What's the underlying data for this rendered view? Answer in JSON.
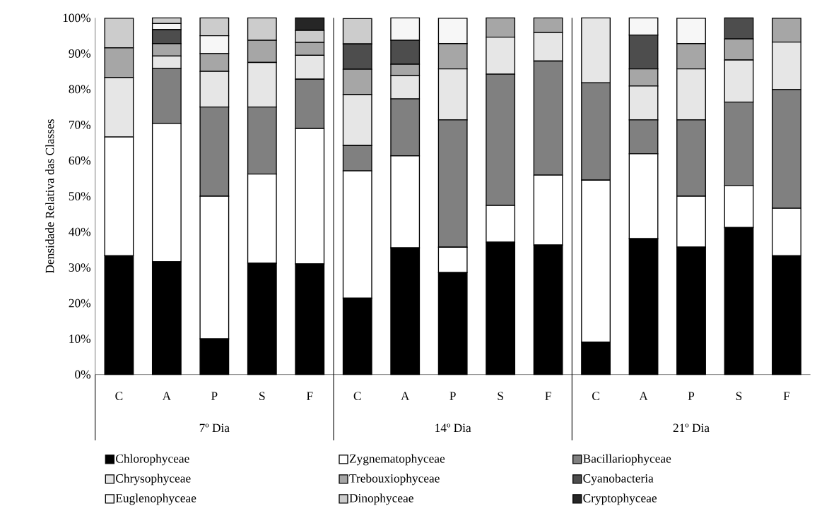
{
  "chart_data": {
    "type": "bar",
    "stacked": true,
    "ylabel": "Densidade Relativa das Classes",
    "categories": [
      "C",
      "A",
      "P",
      "S",
      "F",
      "C",
      "A",
      "P",
      "S",
      "F",
      "C",
      "A",
      "P",
      "S",
      "F"
    ],
    "annotations": [
      "7º Dia",
      "14º Dia",
      "21º Dia"
    ],
    "ylim": [
      0,
      100
    ],
    "yticks": [
      {
        "value": 0,
        "label": "0%"
      },
      {
        "value": 10,
        "label": "10%"
      },
      {
        "value": 20,
        "label": "20%"
      },
      {
        "value": 30,
        "label": "30%"
      },
      {
        "value": 40,
        "label": "40%"
      },
      {
        "value": 50,
        "label": "50%"
      },
      {
        "value": 60,
        "label": "60%"
      },
      {
        "value": 70,
        "label": "70%"
      },
      {
        "value": 80,
        "label": "80%"
      },
      {
        "value": 90,
        "label": "90%"
      },
      {
        "value": 100,
        "label": "100%"
      }
    ],
    "legend": "bottom",
    "grid": false,
    "series": [
      {
        "name": "Chlorophyceae",
        "color": "#000000",
        "values": [
          33.3,
          31.6,
          10,
          31.2,
          31,
          21.4,
          35.5,
          28.6,
          37.1,
          36.3,
          9.1,
          38.1,
          35.7,
          41.2,
          33.3
        ]
      },
      {
        "name": "Zygnematophyceae",
        "color": "#ffffff",
        "values": [
          33.3,
          38.8,
          40,
          25,
          38,
          35.7,
          25.8,
          7.1,
          10.3,
          19.6,
          45.4,
          23.8,
          14.3,
          11.8,
          13.3
        ]
      },
      {
        "name": "Bacillariophyceae",
        "color": "#808080",
        "values": [
          0,
          15.4,
          25,
          18.8,
          13.8,
          7.1,
          16,
          35.7,
          36.8,
          32,
          27.3,
          9.5,
          21.4,
          23.4,
          33.3
        ]
      },
      {
        "name": "Chrysophyceae",
        "color": "#e6e6e6",
        "values": [
          16.7,
          3.5,
          10,
          12.5,
          6.7,
          14.3,
          6.5,
          14.3,
          10.4,
          8,
          18.2,
          9.5,
          14.3,
          11.8,
          13.3
        ]
      },
      {
        "name": "Trebouxiophyceae",
        "color": "#a6a6a6",
        "values": [
          8.3,
          3.5,
          5,
          6.2,
          3.6,
          7.1,
          3.2,
          7.1,
          5.4,
          4.1,
          0,
          4.8,
          7.1,
          5.9,
          6.7
        ]
      },
      {
        "name": "Cyanobacteria",
        "color": "#4d4d4d",
        "values": [
          0,
          3.9,
          0,
          0,
          0,
          7.1,
          6.7,
          0,
          0,
          0,
          0,
          9.5,
          0,
          5.9,
          0
        ]
      },
      {
        "name": "Euglenophyceae",
        "color": "#f7f7f7",
        "values": [
          0,
          1.7,
          5,
          0,
          0,
          0,
          6.3,
          7.1,
          0,
          0,
          0,
          4.8,
          7.1,
          0,
          0
        ]
      },
      {
        "name": "Dinophyceae",
        "color": "#cccccc",
        "values": [
          8.3,
          1.6,
          5,
          6.3,
          3.4,
          7.1,
          0,
          0,
          0,
          0,
          0,
          0,
          0,
          0,
          0
        ]
      },
      {
        "name": "Cryptophyceae",
        "color": "#262626",
        "values": [
          0,
          0,
          0,
          0,
          3.5,
          0,
          0,
          0,
          0,
          0,
          0,
          0,
          0,
          0,
          0
        ]
      }
    ]
  }
}
